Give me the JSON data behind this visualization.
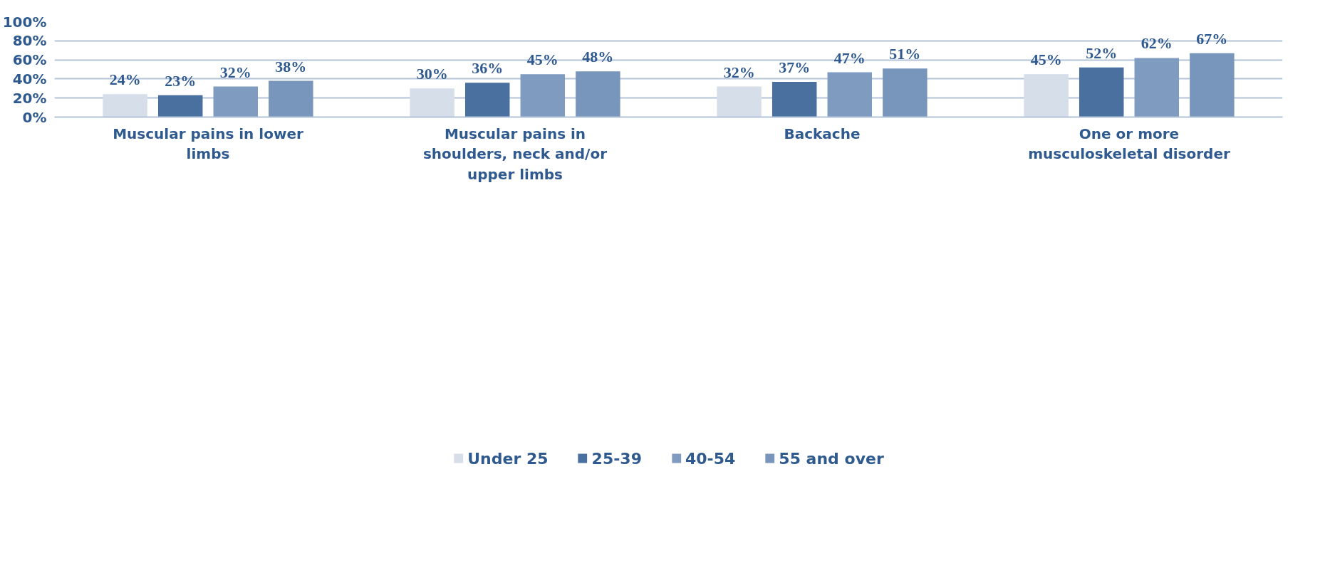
{
  "chart_data": {
    "type": "bar",
    "categories": [
      "Muscular pains in lower\nlimbs",
      "Muscular pains in\nshoulders, neck and/or\nupper limbs",
      "Backache",
      "One or more\nmusculoskeletal disorder"
    ],
    "series": [
      {
        "name": "Under 25",
        "color": "#d6deea",
        "values": [
          24,
          30,
          32,
          45
        ],
        "value_labels": [
          "24%",
          "30%",
          "32%",
          "45%"
        ]
      },
      {
        "name": "25-39",
        "color": "#4a70a0",
        "values": [
          23,
          36,
          37,
          52
        ],
        "value_labels": [
          "23%",
          "36%",
          "37%",
          "52%"
        ]
      },
      {
        "name": "40-54",
        "color": "#7f9bbf",
        "values": [
          32,
          45,
          47,
          62
        ],
        "value_labels": [
          "32%",
          "45%",
          "47%",
          "62%"
        ]
      },
      {
        "name": "55 and over",
        "color": "#7896bb",
        "values": [
          38,
          48,
          51,
          67
        ],
        "value_labels": [
          "38%",
          "48%",
          "51%",
          "67%"
        ]
      }
    ],
    "ylim": [
      0,
      100
    ],
    "yticks": [
      {
        "value": 0,
        "label": "0%"
      },
      {
        "value": 20,
        "label": "20%"
      },
      {
        "value": 40,
        "label": "40%"
      },
      {
        "value": 60,
        "label": "60%"
      },
      {
        "value": 80,
        "label": "80%"
      },
      {
        "value": 100,
        "label": "100%"
      }
    ],
    "grid": "y",
    "legend": "bottom"
  }
}
